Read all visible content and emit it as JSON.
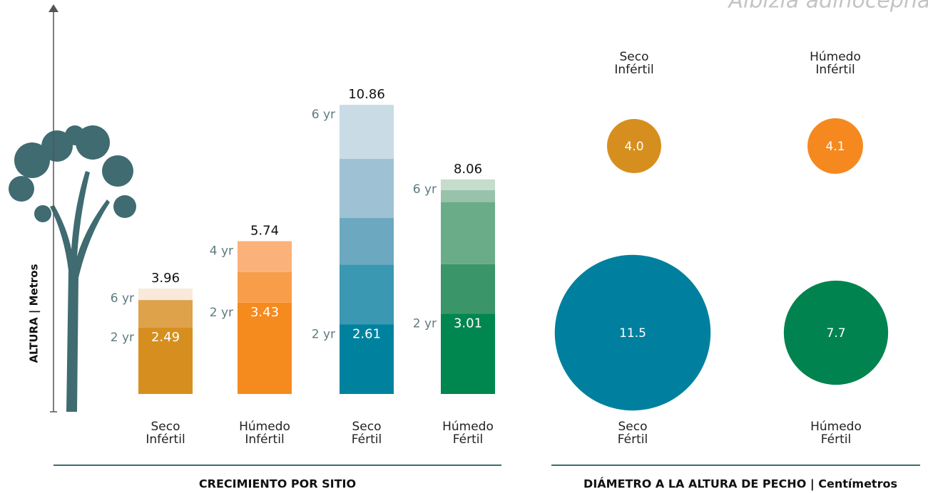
{
  "title": "Albizia adinocephala",
  "chart_data": [
    {
      "type": "stacked_bar",
      "title": "CRECIMIENTO POR SITIO",
      "y_label": "ALTURA | Metros",
      "ylim": [
        0,
        11
      ],
      "bars": [
        {
          "category": [
            "Seco",
            "Infértil"
          ],
          "total": 3.96,
          "segments": [
            {
              "value": 2.49,
              "color": "#d68f1e",
              "label": "2 yr"
            },
            {
              "value": 1.04,
              "color": "#dea24a"
            },
            {
              "value": 0.43,
              "color": "#f8e9dc",
              "label": "6 yr"
            }
          ]
        },
        {
          "category": [
            "Húmedo",
            "Infértil"
          ],
          "total": 5.74,
          "segments": [
            {
              "value": 3.43,
              "color": "#f58a1f",
              "label": "2 yr"
            },
            {
              "value": 1.15,
              "color": "#f89e4b"
            },
            {
              "value": 1.16,
              "color": "#fab27a",
              "label": "4 yr"
            }
          ]
        },
        {
          "category": [
            "Seco",
            "Fértil"
          ],
          "total": 10.86,
          "segments": [
            {
              "value": 2.61,
              "color": "#00829f",
              "label": "2 yr"
            },
            {
              "value": 2.25,
              "color": "#3a98b2"
            },
            {
              "value": 1.76,
              "color": "#6ca9c0"
            },
            {
              "value": 2.22,
              "color": "#9ec2d3"
            },
            {
              "value": 2.02,
              "color": "#c9dbe5",
              "label": "6 yr"
            }
          ]
        },
        {
          "category": [
            "Húmedo",
            "Fértil"
          ],
          "total": 8.06,
          "segments": [
            {
              "value": 3.01,
              "color": "#00864f",
              "label": "2 yr"
            },
            {
              "value": 1.87,
              "color": "#3a9668"
            },
            {
              "value": 2.33,
              "color": "#6bac88"
            },
            {
              "value": 0.45,
              "color": "#98c3aa"
            },
            {
              "value": 0.4,
              "color": "#c6dccd",
              "label": "6 yr"
            }
          ]
        }
      ]
    },
    {
      "type": "bubble",
      "title": "DIÁMETRO A LA ALTURA DE PECHO | Centímetros",
      "points": [
        {
          "category": [
            "Seco",
            "Infértil"
          ],
          "value": 4.0,
          "value_label": "4.0",
          "color": "#d68f1e"
        },
        {
          "category": [
            "Húmedo",
            "Infértil"
          ],
          "value": 4.1,
          "value_label": "4.1",
          "color": "#f5891f"
        },
        {
          "category": [
            "Seco",
            "Fértil"
          ],
          "value": 11.5,
          "value_label": "11.5",
          "color": "#00809e"
        },
        {
          "category": [
            "Húmedo",
            "Fértil"
          ],
          "value": 7.7,
          "value_label": "7.7",
          "color": "#00834f"
        }
      ]
    }
  ]
}
